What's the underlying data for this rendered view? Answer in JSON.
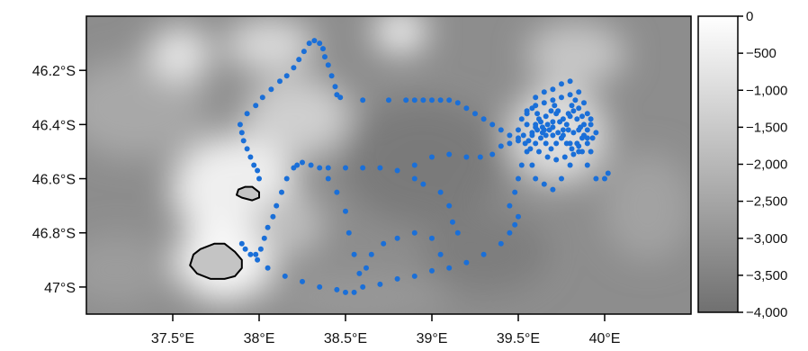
{
  "chart_data": {
    "type": "scatter",
    "title": "",
    "xlabel": "",
    "ylabel": "",
    "x_range": [
      37.0,
      40.5
    ],
    "y_range": [
      -47.1,
      -46.0
    ],
    "x_ticks": [
      {
        "value": 37.5,
        "label": "37.5°E"
      },
      {
        "value": 38.0,
        "label": "38°E"
      },
      {
        "value": 38.5,
        "label": "38.5°E"
      },
      {
        "value": 39.0,
        "label": "39°E"
      },
      {
        "value": 39.5,
        "label": "39.5°E"
      },
      {
        "value": 40.0,
        "label": "40°E"
      }
    ],
    "y_ticks": [
      {
        "value": -46.2,
        "label": "46.2°S"
      },
      {
        "value": -46.4,
        "label": "46.4°S"
      },
      {
        "value": -46.6,
        "label": "46.6°S"
      },
      {
        "value": -46.8,
        "label": "46.8°S"
      },
      {
        "value": -47.0,
        "label": "47°S"
      }
    ],
    "colorbar": {
      "range": [
        -4000,
        0
      ],
      "colors": [
        "#707070",
        "#ffffff"
      ],
      "ticks": [
        {
          "value": 0,
          "label": "0"
        },
        {
          "value": -500,
          "label": "−500"
        },
        {
          "value": -1000,
          "label": "−1,000"
        },
        {
          "value": -1500,
          "label": "−1,500"
        },
        {
          "value": -2000,
          "label": "−2,000"
        },
        {
          "value": -2500,
          "label": "−2,500"
        },
        {
          "value": -3000,
          "label": "−3,000"
        },
        {
          "value": -3500,
          "label": "−3,500"
        },
        {
          "value": -4000,
          "label": "−4,000"
        }
      ]
    },
    "colors": {
      "track": "#1a6fd8",
      "land_fill": "#c4c4c4",
      "land_outline": "#000000"
    },
    "islands": [
      {
        "name": "",
        "coords": [
          [
            37.62,
            -46.88
          ],
          [
            37.66,
            -46.86
          ],
          [
            37.74,
            -46.84
          ],
          [
            37.8,
            -46.84
          ],
          [
            37.86,
            -46.87
          ],
          [
            37.9,
            -46.9
          ],
          [
            37.9,
            -46.93
          ],
          [
            37.86,
            -46.96
          ],
          [
            37.8,
            -46.97
          ],
          [
            37.72,
            -46.97
          ],
          [
            37.64,
            -46.95
          ],
          [
            37.6,
            -46.92
          ]
        ]
      },
      {
        "name": "",
        "coords": [
          [
            37.88,
            -46.64
          ],
          [
            37.92,
            -46.63
          ],
          [
            37.96,
            -46.63
          ],
          [
            38.0,
            -46.65
          ],
          [
            38.0,
            -46.67
          ],
          [
            37.96,
            -46.68
          ],
          [
            37.9,
            -46.67
          ],
          [
            37.87,
            -46.66
          ]
        ]
      }
    ],
    "track": [
      [
        38.0,
        -46.6
      ],
      [
        37.99,
        -46.57
      ],
      [
        37.97,
        -46.55
      ],
      [
        37.95,
        -46.52
      ],
      [
        37.93,
        -46.49
      ],
      [
        37.91,
        -46.46
      ],
      [
        37.9,
        -46.43
      ],
      [
        37.89,
        -46.4
      ],
      [
        37.93,
        -46.36
      ],
      [
        37.98,
        -46.33
      ],
      [
        38.02,
        -46.3
      ],
      [
        38.07,
        -46.27
      ],
      [
        38.12,
        -46.24
      ],
      [
        38.16,
        -46.22
      ],
      [
        38.2,
        -46.19
      ],
      [
        38.23,
        -46.16
      ],
      [
        38.26,
        -46.13
      ],
      [
        38.29,
        -46.1
      ],
      [
        38.32,
        -46.09
      ],
      [
        38.35,
        -46.1
      ],
      [
        38.37,
        -46.12
      ],
      [
        38.38,
        -46.15
      ],
      [
        38.4,
        -46.18
      ],
      [
        38.42,
        -46.22
      ],
      [
        38.44,
        -46.26
      ],
      [
        38.45,
        -46.29
      ],
      [
        38.47,
        -46.3
      ],
      [
        38.6,
        -46.31
      ],
      [
        38.75,
        -46.31
      ],
      [
        38.85,
        -46.31
      ],
      [
        38.9,
        -46.31
      ],
      [
        38.95,
        -46.31
      ],
      [
        39.0,
        -46.31
      ],
      [
        39.05,
        -46.31
      ],
      [
        39.1,
        -46.31
      ],
      [
        39.15,
        -46.32
      ],
      [
        39.2,
        -46.34
      ],
      [
        39.25,
        -46.36
      ],
      [
        39.3,
        -46.38
      ],
      [
        39.35,
        -46.4
      ],
      [
        39.4,
        -46.42
      ],
      [
        39.45,
        -46.44
      ],
      [
        39.5,
        -46.46
      ],
      [
        38.22,
        -46.55
      ],
      [
        38.25,
        -46.54
      ],
      [
        38.3,
        -46.55
      ],
      [
        38.35,
        -46.56
      ],
      [
        38.4,
        -46.56
      ],
      [
        38.5,
        -46.56
      ],
      [
        38.6,
        -46.56
      ],
      [
        38.7,
        -46.56
      ],
      [
        38.8,
        -46.57
      ],
      [
        38.9,
        -46.55
      ],
      [
        39.0,
        -46.52
      ],
      [
        39.1,
        -46.51
      ],
      [
        39.2,
        -46.52
      ],
      [
        39.28,
        -46.52
      ],
      [
        39.35,
        -46.51
      ],
      [
        39.4,
        -46.48
      ],
      [
        39.45,
        -46.47
      ],
      [
        39.5,
        -46.45
      ],
      [
        38.2,
        -46.56
      ],
      [
        38.16,
        -46.6
      ],
      [
        38.13,
        -46.65
      ],
      [
        38.1,
        -46.7
      ],
      [
        38.08,
        -46.74
      ],
      [
        38.05,
        -46.78
      ],
      [
        38.03,
        -46.82
      ],
      [
        38.01,
        -46.86
      ],
      [
        37.98,
        -46.88
      ],
      [
        37.9,
        -46.84
      ],
      [
        37.92,
        -46.86
      ],
      [
        37.95,
        -46.88
      ],
      [
        37.99,
        -46.9
      ],
      [
        38.05,
        -46.93
      ],
      [
        38.15,
        -46.96
      ],
      [
        38.25,
        -46.98
      ],
      [
        38.35,
        -47.0
      ],
      [
        38.45,
        -47.01
      ],
      [
        38.5,
        -47.02
      ],
      [
        38.55,
        -47.02
      ],
      [
        38.6,
        -47.0
      ],
      [
        38.7,
        -46.99
      ],
      [
        38.8,
        -46.97
      ],
      [
        38.9,
        -46.96
      ],
      [
        39.0,
        -46.94
      ],
      [
        39.1,
        -46.93
      ],
      [
        39.2,
        -46.91
      ],
      [
        39.3,
        -46.88
      ],
      [
        39.4,
        -46.84
      ],
      [
        39.45,
        -46.8
      ],
      [
        39.48,
        -46.77
      ],
      [
        39.5,
        -46.74
      ],
      [
        38.4,
        -46.6
      ],
      [
        38.45,
        -46.65
      ],
      [
        38.5,
        -46.72
      ],
      [
        38.52,
        -46.8
      ],
      [
        38.55,
        -46.88
      ],
      [
        38.58,
        -46.95
      ],
      [
        38.62,
        -46.93
      ],
      [
        38.65,
        -46.88
      ],
      [
        38.72,
        -46.84
      ],
      [
        38.8,
        -46.82
      ],
      [
        38.9,
        -46.8
      ],
      [
        39.0,
        -46.82
      ],
      [
        39.05,
        -46.88
      ],
      [
        38.9,
        -46.6
      ],
      [
        38.95,
        -46.62
      ],
      [
        39.05,
        -46.65
      ],
      [
        39.1,
        -46.7
      ],
      [
        39.12,
        -46.76
      ],
      [
        39.15,
        -46.8
      ],
      [
        39.45,
        -46.7
      ],
      [
        39.48,
        -46.65
      ],
      [
        39.5,
        -46.6
      ],
      [
        39.52,
        -46.55
      ],
      [
        39.55,
        -46.5
      ],
      [
        39.58,
        -46.55
      ],
      [
        39.6,
        -46.6
      ],
      [
        39.65,
        -46.62
      ],
      [
        39.7,
        -46.64
      ],
      [
        39.75,
        -46.6
      ],
      [
        39.8,
        -46.55
      ],
      [
        39.85,
        -46.5
      ],
      [
        39.9,
        -46.55
      ],
      [
        39.95,
        -46.6
      ],
      [
        40.0,
        -46.6
      ],
      [
        40.02,
        -46.58
      ],
      [
        39.55,
        -46.35
      ],
      [
        39.6,
        -46.3
      ],
      [
        39.65,
        -46.28
      ],
      [
        39.7,
        -46.27
      ],
      [
        39.75,
        -46.25
      ],
      [
        39.8,
        -46.24
      ],
      [
        39.85,
        -46.28
      ],
      [
        39.88,
        -46.32
      ],
      [
        39.9,
        -46.36
      ],
      [
        39.92,
        -46.4
      ],
      [
        39.9,
        -46.45
      ],
      [
        39.85,
        -46.48
      ],
      [
        39.8,
        -46.47
      ],
      [
        39.75,
        -46.45
      ],
      [
        39.7,
        -46.44
      ],
      [
        39.65,
        -46.42
      ],
      [
        39.6,
        -46.41
      ],
      [
        39.55,
        -46.4
      ],
      [
        39.5,
        -46.42
      ],
      [
        39.53,
        -46.44
      ],
      [
        39.56,
        -46.46
      ],
      [
        39.58,
        -46.43
      ],
      [
        39.6,
        -46.4
      ],
      [
        39.62,
        -46.38
      ],
      [
        39.64,
        -46.41
      ],
      [
        39.66,
        -46.44
      ],
      [
        39.68,
        -46.42
      ],
      [
        39.7,
        -46.39
      ],
      [
        39.72,
        -46.36
      ],
      [
        39.74,
        -46.39
      ],
      [
        39.76,
        -46.42
      ],
      [
        39.78,
        -46.4
      ],
      [
        39.8,
        -46.37
      ],
      [
        39.82,
        -46.35
      ],
      [
        39.84,
        -46.38
      ],
      [
        39.86,
        -46.41
      ],
      [
        39.88,
        -46.44
      ],
      [
        39.9,
        -46.42
      ],
      [
        39.92,
        -46.38
      ],
      [
        39.52,
        -46.38
      ],
      [
        39.55,
        -46.36
      ],
      [
        39.58,
        -46.34
      ],
      [
        39.61,
        -46.36
      ],
      [
        39.63,
        -46.39
      ],
      [
        39.66,
        -46.37
      ],
      [
        39.69,
        -46.35
      ],
      [
        39.71,
        -46.33
      ],
      [
        39.73,
        -46.35
      ],
      [
        39.76,
        -46.38
      ],
      [
        39.79,
        -46.36
      ],
      [
        39.81,
        -46.33
      ],
      [
        39.83,
        -46.31
      ],
      [
        39.85,
        -46.34
      ],
      [
        39.87,
        -46.37
      ],
      [
        39.54,
        -46.47
      ],
      [
        39.57,
        -46.49
      ],
      [
        39.6,
        -46.47
      ],
      [
        39.63,
        -46.45
      ],
      [
        39.66,
        -46.47
      ],
      [
        39.69,
        -46.49
      ],
      [
        39.72,
        -46.47
      ],
      [
        39.75,
        -46.45
      ],
      [
        39.78,
        -46.47
      ],
      [
        39.81,
        -46.49
      ],
      [
        39.84,
        -46.47
      ],
      [
        39.87,
        -46.45
      ],
      [
        39.9,
        -46.47
      ],
      [
        39.93,
        -46.45
      ],
      [
        39.95,
        -46.43
      ],
      [
        39.6,
        -46.33
      ],
      [
        39.65,
        -46.32
      ],
      [
        39.7,
        -46.31
      ],
      [
        39.75,
        -46.3
      ],
      [
        39.8,
        -46.29
      ],
      [
        39.62,
        -46.5
      ],
      [
        39.67,
        -46.52
      ],
      [
        39.72,
        -46.53
      ],
      [
        39.77,
        -46.52
      ],
      [
        39.82,
        -46.51
      ],
      [
        39.87,
        -46.5
      ],
      [
        39.92,
        -46.5
      ],
      [
        39.58,
        -46.44
      ],
      [
        39.61,
        -46.42
      ],
      [
        39.64,
        -46.43
      ],
      [
        39.67,
        -46.4
      ],
      [
        39.7,
        -46.41
      ],
      [
        39.73,
        -46.43
      ],
      [
        39.76,
        -46.44
      ],
      [
        39.79,
        -46.42
      ],
      [
        39.82,
        -46.43
      ],
      [
        39.85,
        -46.42
      ],
      [
        39.88,
        -46.4
      ]
    ]
  }
}
